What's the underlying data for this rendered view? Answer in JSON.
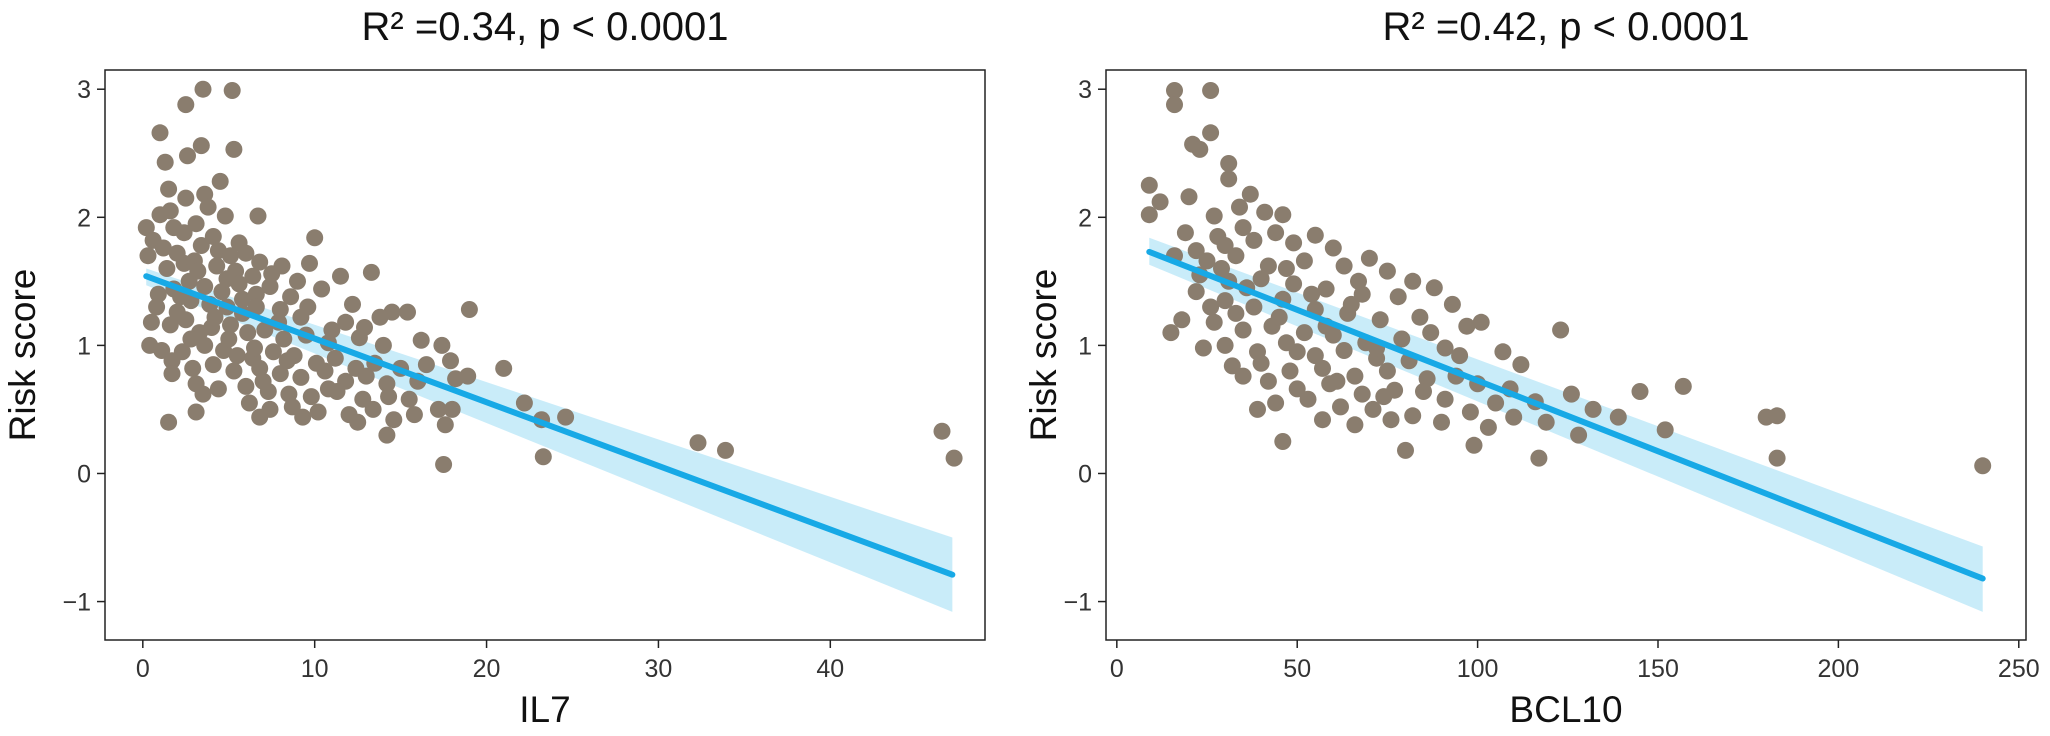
{
  "chart_data": [
    {
      "type": "scatter",
      "title": "R² =0.34, p < 0.0001",
      "xlabel": "IL7",
      "ylabel": "Risk score",
      "xlim": [
        -2.2,
        49.0
      ],
      "ylim": [
        -1.3,
        3.15
      ],
      "xticks": [
        0,
        10,
        20,
        30,
        40
      ],
      "yticks": [
        -1,
        0,
        1,
        2,
        3
      ],
      "grid": false,
      "point_color": "#8a7d6e",
      "line_color": "#17a9e6",
      "band_color": "#bfe9f8",
      "fit": {
        "x": [
          0.2,
          47.1
        ],
        "y": [
          1.54,
          -0.79
        ],
        "band_lo": [
          1.47,
          -1.08
        ],
        "band_hi": [
          1.6,
          -0.5
        ]
      },
      "points": [
        [
          3.5,
          3.0
        ],
        [
          5.2,
          2.99
        ],
        [
          2.5,
          2.88
        ],
        [
          1.0,
          2.66
        ],
        [
          3.4,
          2.56
        ],
        [
          5.3,
          2.53
        ],
        [
          2.6,
          2.48
        ],
        [
          1.3,
          2.43
        ],
        [
          4.5,
          2.28
        ],
        [
          1.5,
          2.22
        ],
        [
          3.6,
          2.18
        ],
        [
          2.5,
          2.15
        ],
        [
          3.8,
          2.08
        ],
        [
          1.0,
          2.02
        ],
        [
          1.6,
          2.05
        ],
        [
          4.8,
          2.01
        ],
        [
          6.7,
          2.01
        ],
        [
          0.2,
          1.92
        ],
        [
          1.8,
          1.92
        ],
        [
          2.4,
          1.88
        ],
        [
          3.1,
          1.95
        ],
        [
          4.1,
          1.85
        ],
        [
          5.6,
          1.8
        ],
        [
          10.0,
          1.84
        ],
        [
          0.6,
          1.82
        ],
        [
          1.2,
          1.76
        ],
        [
          2.0,
          1.72
        ],
        [
          3.4,
          1.78
        ],
        [
          4.4,
          1.74
        ],
        [
          5.1,
          1.7
        ],
        [
          6.0,
          1.72
        ],
        [
          6.8,
          1.65
        ],
        [
          8.1,
          1.62
        ],
        [
          9.7,
          1.64
        ],
        [
          0.3,
          1.7
        ],
        [
          1.4,
          1.6
        ],
        [
          2.4,
          1.64
        ],
        [
          3.0,
          1.66
        ],
        [
          4.3,
          1.62
        ],
        [
          5.4,
          1.58
        ],
        [
          6.4,
          1.54
        ],
        [
          7.5,
          1.56
        ],
        [
          9.0,
          1.5
        ],
        [
          11.5,
          1.54
        ],
        [
          13.3,
          1.57
        ],
        [
          0.9,
          1.4
        ],
        [
          1.8,
          1.44
        ],
        [
          2.7,
          1.5
        ],
        [
          3.6,
          1.46
        ],
        [
          4.6,
          1.42
        ],
        [
          5.6,
          1.48
        ],
        [
          6.6,
          1.4
        ],
        [
          7.4,
          1.46
        ],
        [
          8.6,
          1.38
        ],
        [
          10.4,
          1.44
        ],
        [
          12.2,
          1.32
        ],
        [
          14.5,
          1.26
        ],
        [
          0.8,
          1.3
        ],
        [
          2.0,
          1.26
        ],
        [
          2.8,
          1.35
        ],
        [
          3.9,
          1.32
        ],
        [
          4.9,
          1.3
        ],
        [
          5.8,
          1.25
        ],
        [
          6.6,
          1.3
        ],
        [
          8.0,
          1.28
        ],
        [
          9.2,
          1.22
        ],
        [
          11.8,
          1.18
        ],
        [
          13.8,
          1.22
        ],
        [
          15.4,
          1.26
        ],
        [
          19.0,
          1.28
        ],
        [
          0.5,
          1.18
        ],
        [
          1.6,
          1.16
        ],
        [
          2.5,
          1.2
        ],
        [
          3.3,
          1.1
        ],
        [
          4.0,
          1.14
        ],
        [
          5.1,
          1.16
        ],
        [
          6.1,
          1.1
        ],
        [
          7.1,
          1.12
        ],
        [
          8.2,
          1.05
        ],
        [
          9.5,
          1.08
        ],
        [
          10.8,
          1.02
        ],
        [
          12.6,
          1.06
        ],
        [
          14.0,
          1.0
        ],
        [
          16.2,
          1.04
        ],
        [
          17.4,
          1.0
        ],
        [
          0.4,
          1.0
        ],
        [
          1.1,
          0.96
        ],
        [
          2.3,
          0.95
        ],
        [
          3.6,
          1.0
        ],
        [
          4.7,
          0.96
        ],
        [
          5.5,
          0.92
        ],
        [
          6.4,
          0.9
        ],
        [
          7.6,
          0.95
        ],
        [
          8.8,
          0.92
        ],
        [
          10.1,
          0.86
        ],
        [
          11.2,
          0.9
        ],
        [
          12.4,
          0.82
        ],
        [
          13.5,
          0.86
        ],
        [
          15.0,
          0.82
        ],
        [
          16.5,
          0.85
        ],
        [
          17.9,
          0.88
        ],
        [
          21.0,
          0.82
        ],
        [
          1.7,
          0.88
        ],
        [
          2.9,
          0.82
        ],
        [
          4.1,
          0.85
        ],
        [
          5.3,
          0.8
        ],
        [
          6.8,
          0.82
        ],
        [
          8.0,
          0.78
        ],
        [
          9.2,
          0.75
        ],
        [
          10.6,
          0.8
        ],
        [
          11.8,
          0.72
        ],
        [
          13.0,
          0.76
        ],
        [
          14.2,
          0.7
        ],
        [
          16.0,
          0.72
        ],
        [
          18.2,
          0.74
        ],
        [
          18.9,
          0.76
        ],
        [
          1.7,
          0.78
        ],
        [
          3.1,
          0.7
        ],
        [
          4.4,
          0.66
        ],
        [
          6.0,
          0.68
        ],
        [
          7.3,
          0.64
        ],
        [
          8.5,
          0.62
        ],
        [
          9.8,
          0.6
        ],
        [
          11.3,
          0.64
        ],
        [
          12.8,
          0.58
        ],
        [
          14.3,
          0.6
        ],
        [
          15.5,
          0.58
        ],
        [
          17.2,
          0.5
        ],
        [
          18.0,
          0.5
        ],
        [
          3.5,
          0.62
        ],
        [
          6.2,
          0.55
        ],
        [
          7.4,
          0.5
        ],
        [
          8.7,
          0.52
        ],
        [
          10.2,
          0.48
        ],
        [
          12.0,
          0.46
        ],
        [
          13.4,
          0.5
        ],
        [
          14.6,
          0.42
        ],
        [
          15.8,
          0.46
        ],
        [
          17.6,
          0.38
        ],
        [
          22.2,
          0.55
        ],
        [
          23.2,
          0.42
        ],
        [
          24.6,
          0.44
        ],
        [
          1.5,
          0.4
        ],
        [
          3.1,
          0.48
        ],
        [
          6.8,
          0.44
        ],
        [
          9.3,
          0.44
        ],
        [
          12.5,
          0.4
        ],
        [
          14.2,
          0.3
        ],
        [
          17.5,
          0.07
        ],
        [
          23.3,
          0.13
        ],
        [
          32.3,
          0.24
        ],
        [
          33.9,
          0.18
        ],
        [
          46.5,
          0.33
        ],
        [
          47.2,
          0.12
        ],
        [
          2.8,
          1.05
        ],
        [
          4.2,
          1.22
        ],
        [
          5.8,
          1.36
        ],
        [
          7.9,
          1.18
        ],
        [
          9.6,
          1.3
        ],
        [
          11.0,
          1.12
        ],
        [
          12.9,
          1.14
        ],
        [
          7.0,
          0.72
        ],
        [
          10.8,
          0.66
        ],
        [
          5.0,
          1.05
        ],
        [
          6.5,
          0.98
        ],
        [
          8.4,
          0.88
        ],
        [
          3.2,
          1.58
        ],
        [
          4.9,
          1.52
        ],
        [
          2.2,
          1.38
        ]
      ]
    },
    {
      "type": "scatter",
      "title": "R² =0.42, p < 0.0001",
      "xlabel": "BCL10",
      "ylabel": "Risk score",
      "xlim": [
        -3.0,
        252.0
      ],
      "ylim": [
        -1.3,
        3.15
      ],
      "xticks": [
        0,
        50,
        100,
        150,
        200,
        250
      ],
      "yticks": [
        -1,
        0,
        1,
        2,
        3
      ],
      "grid": false,
      "point_color": "#8a7d6e",
      "line_color": "#17a9e6",
      "band_color": "#bfe9f8",
      "fit": {
        "x": [
          9.0,
          240.0
        ],
        "y": [
          1.73,
          -0.82
        ],
        "band_lo": [
          1.63,
          -1.08
        ],
        "band_hi": [
          1.84,
          -0.57
        ]
      },
      "points": [
        [
          16.0,
          2.99
        ],
        [
          26.0,
          2.99
        ],
        [
          16.0,
          2.88
        ],
        [
          26.0,
          2.66
        ],
        [
          21.0,
          2.57
        ],
        [
          23.0,
          2.53
        ],
        [
          31.0,
          2.42
        ],
        [
          9.0,
          2.25
        ],
        [
          20.0,
          2.16
        ],
        [
          31.0,
          2.3
        ],
        [
          12.0,
          2.12
        ],
        [
          9.0,
          2.02
        ],
        [
          37.0,
          2.18
        ],
        [
          27.0,
          2.01
        ],
        [
          34.0,
          2.08
        ],
        [
          41.0,
          2.04
        ],
        [
          46.0,
          2.02
        ],
        [
          19.0,
          1.88
        ],
        [
          28.0,
          1.85
        ],
        [
          35.0,
          1.92
        ],
        [
          44.0,
          1.88
        ],
        [
          55.0,
          1.86
        ],
        [
          22.0,
          1.74
        ],
        [
          30.0,
          1.78
        ],
        [
          38.0,
          1.82
        ],
        [
          49.0,
          1.8
        ],
        [
          60.0,
          1.76
        ],
        [
          70.0,
          1.68
        ],
        [
          16.0,
          1.7
        ],
        [
          25.0,
          1.66
        ],
        [
          33.0,
          1.7
        ],
        [
          42.0,
          1.62
        ],
        [
          52.0,
          1.66
        ],
        [
          63.0,
          1.62
        ],
        [
          75.0,
          1.58
        ],
        [
          82.0,
          1.5
        ],
        [
          88.0,
          1.45
        ],
        [
          23.0,
          1.55
        ],
        [
          31.0,
          1.5
        ],
        [
          40.0,
          1.52
        ],
        [
          49.0,
          1.48
        ],
        [
          58.0,
          1.44
        ],
        [
          68.0,
          1.4
        ],
        [
          78.0,
          1.38
        ],
        [
          93.0,
          1.32
        ],
        [
          101.0,
          1.18
        ],
        [
          123.0,
          1.12
        ],
        [
          22.0,
          1.42
        ],
        [
          30.0,
          1.35
        ],
        [
          38.0,
          1.3
        ],
        [
          46.0,
          1.36
        ],
        [
          55.0,
          1.28
        ],
        [
          64.0,
          1.25
        ],
        [
          73.0,
          1.2
        ],
        [
          84.0,
          1.22
        ],
        [
          97.0,
          1.15
        ],
        [
          18.0,
          1.2
        ],
        [
          27.0,
          1.18
        ],
        [
          35.0,
          1.12
        ],
        [
          43.0,
          1.15
        ],
        [
          52.0,
          1.1
        ],
        [
          60.0,
          1.08
        ],
        [
          69.0,
          1.02
        ],
        [
          79.0,
          1.05
        ],
        [
          91.0,
          0.98
        ],
        [
          107.0,
          0.95
        ],
        [
          15.0,
          1.1
        ],
        [
          30.0,
          1.0
        ],
        [
          39.0,
          0.95
        ],
        [
          47.0,
          1.02
        ],
        [
          55.0,
          0.92
        ],
        [
          63.0,
          0.96
        ],
        [
          72.0,
          0.9
        ],
        [
          81.0,
          0.88
        ],
        [
          95.0,
          0.92
        ],
        [
          112.0,
          0.85
        ],
        [
          32.0,
          0.84
        ],
        [
          40.0,
          0.86
        ],
        [
          48.0,
          0.8
        ],
        [
          57.0,
          0.82
        ],
        [
          66.0,
          0.76
        ],
        [
          75.0,
          0.8
        ],
        [
          86.0,
          0.74
        ],
        [
          100.0,
          0.7
        ],
        [
          126.0,
          0.62
        ],
        [
          42.0,
          0.72
        ],
        [
          50.0,
          0.66
        ],
        [
          59.0,
          0.7
        ],
        [
          68.0,
          0.62
        ],
        [
          77.0,
          0.65
        ],
        [
          91.0,
          0.58
        ],
        [
          105.0,
          0.55
        ],
        [
          116.0,
          0.56
        ],
        [
          132.0,
          0.5
        ],
        [
          157.0,
          0.68
        ],
        [
          145.0,
          0.64
        ],
        [
          44.0,
          0.55
        ],
        [
          53.0,
          0.58
        ],
        [
          62.0,
          0.52
        ],
        [
          71.0,
          0.5
        ],
        [
          82.0,
          0.45
        ],
        [
          98.0,
          0.48
        ],
        [
          110.0,
          0.44
        ],
        [
          119.0,
          0.4
        ],
        [
          139.0,
          0.44
        ],
        [
          152.0,
          0.34
        ],
        [
          39.0,
          0.5
        ],
        [
          57.0,
          0.42
        ],
        [
          66.0,
          0.38
        ],
        [
          76.0,
          0.42
        ],
        [
          90.0,
          0.4
        ],
        [
          103.0,
          0.36
        ],
        [
          128.0,
          0.3
        ],
        [
          180.0,
          0.44
        ],
        [
          183.0,
          0.45
        ],
        [
          46.0,
          0.25
        ],
        [
          80.0,
          0.18
        ],
        [
          99.0,
          0.22
        ],
        [
          117.0,
          0.12
        ],
        [
          183.0,
          0.12
        ],
        [
          240.0,
          0.06
        ],
        [
          26.0,
          1.3
        ],
        [
          33.0,
          1.25
        ],
        [
          45.0,
          1.22
        ],
        [
          58.0,
          1.15
        ],
        [
          65.0,
          1.32
        ],
        [
          87.0,
          1.1
        ],
        [
          50.0,
          0.95
        ],
        [
          61.0,
          0.72
        ],
        [
          72.0,
          0.98
        ],
        [
          85.0,
          0.64
        ],
        [
          36.0,
          1.45
        ],
        [
          54.0,
          1.4
        ],
        [
          29.0,
          1.6
        ],
        [
          47.0,
          1.6
        ],
        [
          67.0,
          1.5
        ],
        [
          24.0,
          0.98
        ],
        [
          35.0,
          0.76
        ],
        [
          74.0,
          0.6
        ],
        [
          94.0,
          0.76
        ],
        [
          109.0,
          0.66
        ]
      ]
    }
  ]
}
